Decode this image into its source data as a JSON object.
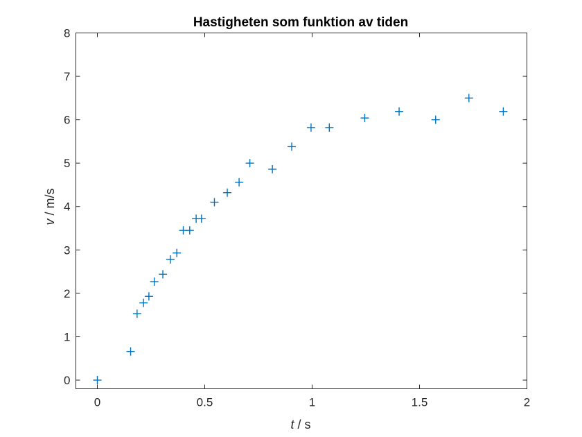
{
  "chart_data": {
    "type": "scatter",
    "title": "Hastigheten som funktion av tiden",
    "xlabel": {
      "variable": "t",
      "unit": " / s"
    },
    "ylabel": {
      "variable": "v",
      "unit": " / m/s"
    },
    "xlim": [
      -0.1,
      2
    ],
    "ylim": [
      -0.2,
      8
    ],
    "xticks": [
      0,
      0.5,
      1,
      1.5,
      2
    ],
    "xtick_labels": [
      "0",
      "0.5",
      "1",
      "1.5",
      "2"
    ],
    "yticks": [
      0,
      1,
      2,
      3,
      4,
      5,
      6,
      7,
      8
    ],
    "ytick_labels": [
      "0",
      "1",
      "2",
      "3",
      "4",
      "5",
      "6",
      "7",
      "8"
    ],
    "grid": false,
    "marker": "+",
    "color": "#0072bd",
    "series": [
      {
        "x": [
          0,
          0.155,
          0.185,
          0.215,
          0.24,
          0.265,
          0.305,
          0.34,
          0.37,
          0.4,
          0.43,
          0.46,
          0.485,
          0.545,
          0.605,
          0.66,
          0.71,
          0.815,
          0.905,
          0.995,
          1.08,
          1.245,
          1.405,
          1.575,
          1.73,
          1.89
        ],
        "y": [
          0,
          0.66,
          1.53,
          1.78,
          1.93,
          2.27,
          2.44,
          2.78,
          2.93,
          3.45,
          3.45,
          3.72,
          3.72,
          4.1,
          4.32,
          4.56,
          5.0,
          4.86,
          5.38,
          5.82,
          5.82,
          6.04,
          6.19,
          6.0,
          6.5,
          6.19
        ]
      }
    ]
  }
}
